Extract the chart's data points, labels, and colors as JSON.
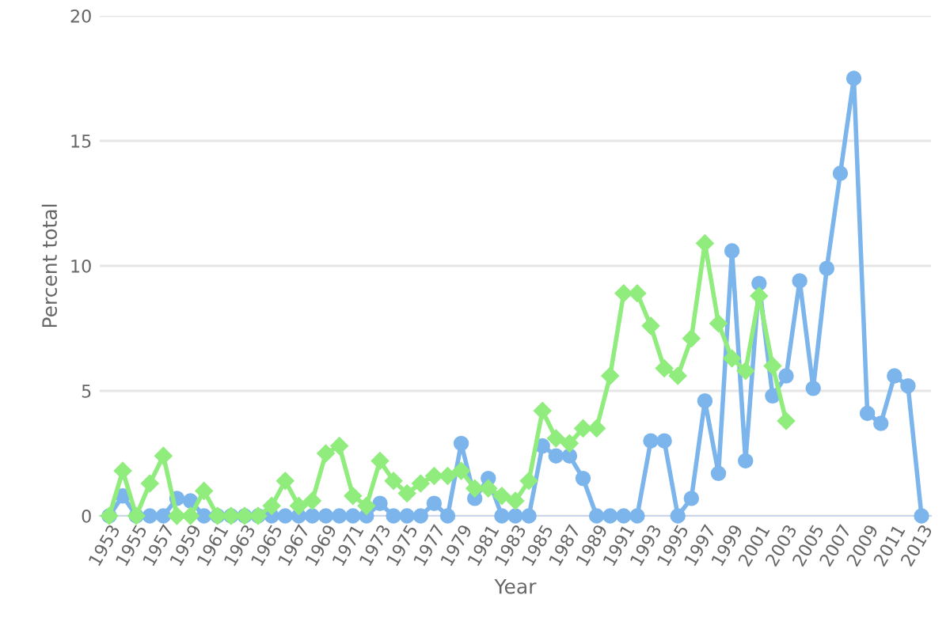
{
  "chart_data": {
    "type": "line",
    "xlabel": "Year",
    "ylabel": "Percent total",
    "categories": [
      "1953",
      null,
      "1955",
      null,
      "1957",
      null,
      "1959",
      null,
      "1961",
      null,
      "1963",
      null,
      "1965",
      null,
      "1967",
      null,
      "1969",
      null,
      "1971",
      null,
      "1973",
      null,
      "1975",
      null,
      "1977",
      null,
      "1979",
      null,
      "1981",
      null,
      "1983",
      null,
      "1985",
      null,
      "1987",
      null,
      "1989",
      null,
      "1991",
      null,
      "1993",
      null,
      "1995",
      null,
      "1997",
      null,
      "1999",
      null,
      "2001",
      null,
      "2003",
      null,
      "2005",
      null,
      "2007",
      null,
      "2009",
      null,
      "2011",
      null,
      "2013"
    ],
    "series": [
      {
        "color": "#7cb5ec",
        "marker": "circle",
        "values": [
          0,
          0.8,
          0,
          0,
          0,
          0.7,
          0.6,
          0,
          0,
          0,
          0,
          0,
          0,
          0,
          0,
          0,
          0,
          0,
          0,
          0,
          0.5,
          0,
          0,
          0,
          0.5,
          0,
          2.9,
          0.7,
          1.5,
          0,
          0,
          0,
          2.8,
          2.4,
          2.4,
          1.5,
          0,
          0,
          0,
          0,
          3.0,
          3.0,
          0,
          0.7,
          4.6,
          1.7,
          10.6,
          2.2,
          9.3,
          4.8,
          5.6,
          9.4,
          5.1,
          9.9,
          13.7,
          17.5,
          4.1,
          3.7,
          5.6,
          5.2,
          0
        ]
      },
      {
        "color": "#90ed7d",
        "marker": "diamond",
        "values": [
          0,
          1.8,
          0,
          1.3,
          2.4,
          0,
          0,
          1.0,
          0,
          0,
          0,
          0,
          0.4,
          1.4,
          0.4,
          0.6,
          2.5,
          2.8,
          0.8,
          0.4,
          2.2,
          1.4,
          0.9,
          1.3,
          1.6,
          1.6,
          1.8,
          1.1,
          1.1,
          0.8,
          0.6,
          1.4,
          4.2,
          3.1,
          2.9,
          3.5,
          3.5,
          5.6,
          8.9,
          8.9,
          7.6,
          5.9,
          5.6,
          7.1,
          10.9,
          7.7,
          6.3,
          5.8,
          8.8,
          6.0,
          3.8,
          null,
          null,
          null,
          null,
          null,
          null,
          null,
          null,
          null,
          null
        ]
      }
    ],
    "ylim": [
      0,
      20
    ],
    "yticks": [
      0,
      5,
      10,
      15,
      20
    ],
    "grid": "y",
    "line_style": "solid"
  }
}
